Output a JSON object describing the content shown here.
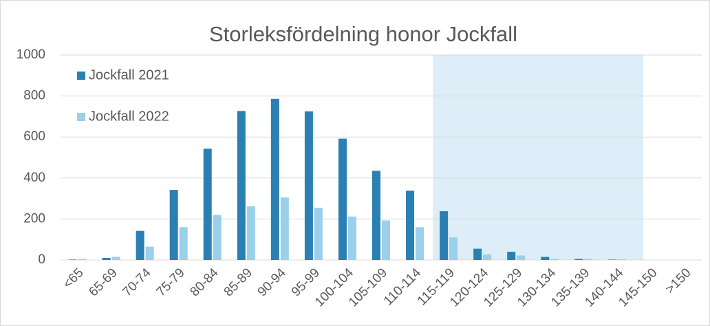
{
  "chart_data": {
    "type": "bar",
    "title": "Storleksfördelning honor Jockfall",
    "categories": [
      "<65",
      "65-69",
      "70-74",
      "75-79",
      "80-84",
      "85-89",
      "90-94",
      "95-99",
      "100-104",
      "105-109",
      "110-114",
      "115-119",
      "120-124",
      "125-129",
      "130-134",
      "135-139",
      "140-144",
      "145-150",
      ">150"
    ],
    "series": [
      {
        "name": "Jockfall 2021",
        "color": "#2a80b2",
        "values": [
          2,
          10,
          142,
          342,
          543,
          727,
          786,
          725,
          592,
          435,
          338,
          238,
          55,
          40,
          15,
          5,
          2,
          0,
          0
        ]
      },
      {
        "name": "Jockfall 2022",
        "color": "#9ad0ea",
        "values": [
          5,
          15,
          65,
          160,
          220,
          262,
          305,
          255,
          212,
          193,
          160,
          110,
          27,
          22,
          5,
          5,
          3,
          0,
          0
        ]
      }
    ],
    "ylim": [
      0,
      1000
    ],
    "yticks": [
      0,
      200,
      400,
      600,
      800,
      1000
    ],
    "grid": true,
    "legend": "upper left"
  }
}
